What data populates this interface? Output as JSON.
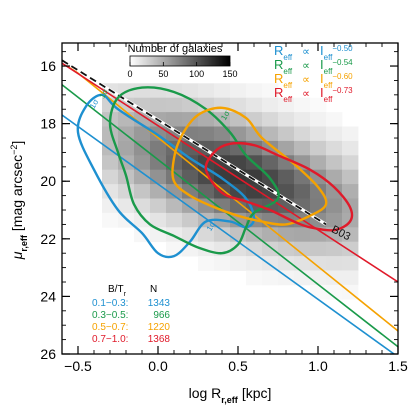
{
  "chart_data": {
    "type": "heatmap",
    "xlabel": "log R",
    "xlabel_sub": "r,eff",
    "xlabel_unit": "[kpc]",
    "ylabel": "μ",
    "ylabel_sub": "r,eff",
    "ylabel_unit": "[mag arcsec",
    "ylabel_exp": "−2",
    "ylabel_close": "]",
    "xlim": [
      -0.6,
      1.5
    ],
    "ylim": [
      26,
      15.2
    ],
    "y_inverted": true,
    "xticks": [
      -0.5,
      0.0,
      0.5,
      1.0,
      1.5
    ],
    "xtick_labels": [
      "−0.5",
      "0.0",
      "0.5",
      "1.0",
      "1.5"
    ],
    "yticks": [
      16,
      18,
      20,
      22,
      24,
      26
    ],
    "ytick_labels": [
      "16",
      "18",
      "20",
      "22",
      "24",
      "26"
    ],
    "colorbar": {
      "title": "Number of galaxies",
      "ticks": [
        0,
        50,
        100,
        150
      ],
      "tick_labels": [
        "0",
        "50",
        "100",
        "150"
      ],
      "range": [
        0,
        150
      ]
    },
    "density_grid": {
      "x_edges_start": -0.35,
      "cell_dx": 0.1,
      "y_edges_start": 16.6,
      "cell_dy": 0.5,
      "ridge_y0": 19.2,
      "ridge_slope": 1.6,
      "peak": 150
    },
    "relation_legend": {
      "lhs": "R",
      "lhs_sub": "eff",
      "symbol": "∝",
      "rhs": "I",
      "rhs_sub": "eff",
      "entries": [
        {
          "exponent": "−0.50",
          "color": "#1e90d0"
        },
        {
          "exponent": "−0.54",
          "color": "#1a9a4a"
        },
        {
          "exponent": "−0.60",
          "color": "#f5a200"
        },
        {
          "exponent": "−0.73",
          "color": "#e01a2a"
        }
      ]
    },
    "series": [
      {
        "bt": "0.1−0.3:",
        "n": "1343",
        "color": "#1e90d0",
        "exponent": -0.5,
        "fit": {
          "x": [
            -0.6,
            1.5
          ],
          "y": [
            17.7,
            26.1
          ]
        },
        "contour": [
          [
            -0.45,
            17.4
          ],
          [
            -0.35,
            17.0
          ],
          [
            -0.25,
            17.5
          ],
          [
            0.0,
            18.4
          ],
          [
            0.2,
            19.2
          ],
          [
            0.4,
            19.9
          ],
          [
            0.55,
            20.6
          ],
          [
            0.6,
            21.3
          ],
          [
            0.55,
            21.6
          ],
          [
            0.45,
            21.4
          ],
          [
            0.3,
            21.4
          ],
          [
            0.2,
            22.1
          ],
          [
            0.1,
            22.6
          ],
          [
            0.0,
            22.5
          ],
          [
            -0.1,
            21.8
          ],
          [
            -0.25,
            21.0
          ],
          [
            -0.4,
            19.6
          ],
          [
            -0.5,
            18.3
          ]
        ]
      },
      {
        "bt": "0.3−0.5:",
        "n": "966",
        "color": "#1a9a4a",
        "exponent": -0.54,
        "fit": {
          "x": [
            -0.6,
            1.5
          ],
          "y": [
            16.65,
            25.75
          ]
        },
        "contour": [
          [
            -0.3,
            18.0
          ],
          [
            -0.25,
            17.1
          ],
          [
            -0.1,
            16.75
          ],
          [
            0.1,
            16.9
          ],
          [
            0.3,
            17.5
          ],
          [
            0.45,
            18.3
          ],
          [
            0.55,
            19.1
          ],
          [
            0.7,
            19.9
          ],
          [
            0.75,
            20.6
          ],
          [
            0.6,
            21.1
          ],
          [
            0.55,
            21.6
          ],
          [
            0.5,
            22.2
          ],
          [
            0.4,
            22.5
          ],
          [
            0.25,
            22.3
          ],
          [
            0.1,
            21.9
          ],
          [
            -0.05,
            21.5
          ],
          [
            -0.15,
            20.8
          ],
          [
            -0.2,
            19.8
          ],
          [
            -0.25,
            19.0
          ]
        ]
      },
      {
        "bt": "0.5−0.7:",
        "n": "1220",
        "color": "#f5a200",
        "exponent": -0.6,
        "fit": {
          "x": [
            -0.6,
            1.5
          ],
          "y": [
            15.8,
            25.2
          ]
        },
        "contour": [
          [
            0.1,
            19.2
          ],
          [
            0.15,
            18.4
          ],
          [
            0.25,
            17.7
          ],
          [
            0.4,
            17.45
          ],
          [
            0.55,
            17.8
          ],
          [
            0.65,
            18.5
          ],
          [
            0.85,
            19.4
          ],
          [
            1.0,
            20.2
          ],
          [
            1.05,
            20.8
          ],
          [
            0.95,
            21.2
          ],
          [
            0.8,
            21.5
          ],
          [
            0.65,
            21.4
          ],
          [
            0.5,
            21.2
          ],
          [
            0.35,
            20.9
          ],
          [
            0.2,
            20.5
          ],
          [
            0.1,
            20.0
          ]
        ]
      },
      {
        "bt": "0.7−1.0:",
        "n": "1368",
        "color": "#e01a2a",
        "exponent": -0.73,
        "fit": {
          "x": [
            -0.6,
            1.5
          ],
          "y": [
            15.9,
            23.5
          ]
        },
        "contour": [
          [
            0.3,
            19.6
          ],
          [
            0.35,
            19.0
          ],
          [
            0.45,
            18.7
          ],
          [
            0.6,
            18.75
          ],
          [
            0.75,
            19.1
          ],
          [
            0.95,
            19.6
          ],
          [
            1.1,
            20.2
          ],
          [
            1.2,
            20.9
          ],
          [
            1.2,
            21.4
          ],
          [
            1.1,
            21.7
          ],
          [
            0.95,
            21.6
          ],
          [
            0.85,
            21.4
          ],
          [
            0.7,
            21.0
          ],
          [
            0.55,
            20.7
          ],
          [
            0.4,
            20.4
          ]
        ]
      }
    ],
    "reference": {
      "label": "B03",
      "color": "#111111",
      "dash": true,
      "x": [
        -0.6,
        1.05
      ],
      "y": [
        15.8,
        21.5
      ]
    },
    "contour_labels": [
      {
        "text": "1σ",
        "x": -0.4,
        "y": 17.5,
        "color": "#1e90d0"
      },
      {
        "text": "1σ",
        "x": -0.34,
        "y": 17.15,
        "color": "#1a9a4a"
      },
      {
        "text": "1σ",
        "x": 0.42,
        "y": 17.9,
        "color": "#1a9a4a"
      },
      {
        "text": "1σ",
        "x": 0.33,
        "y": 21.75,
        "color": "#1e90d0"
      }
    ],
    "sample_table": {
      "header_bt": "B/T",
      "header_bt_sub": "r",
      "header_n": "N"
    }
  }
}
